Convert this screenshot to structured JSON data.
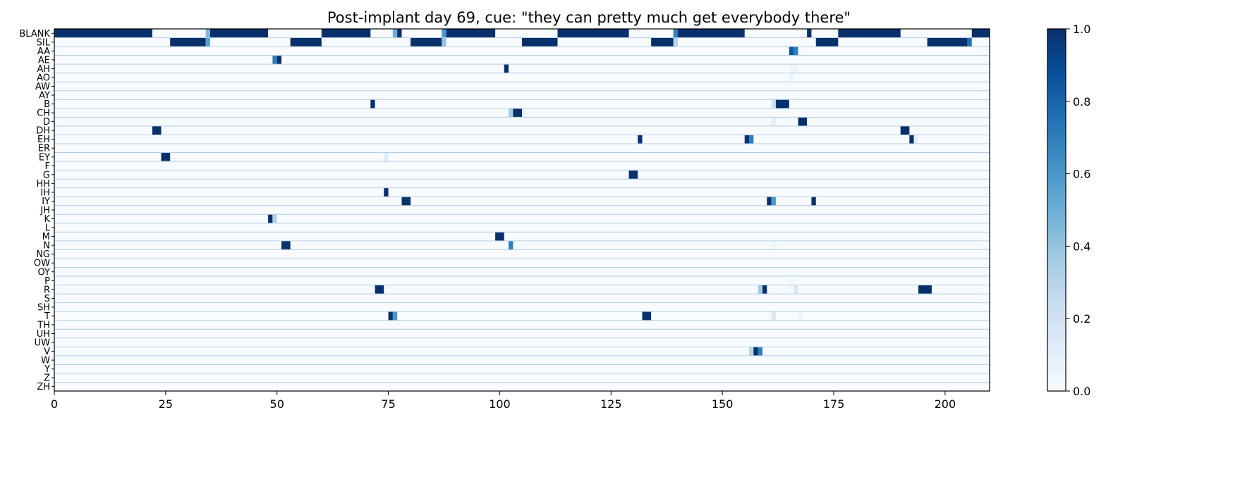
{
  "chart_data": {
    "type": "heatmap",
    "title": "Post-implant day 69, cue: \"they can pretty much get everybody there\"",
    "xlabel": "",
    "ylabel": "",
    "xlim": [
      0,
      210
    ],
    "x_ticks": [
      0,
      25,
      50,
      75,
      100,
      125,
      150,
      175,
      200
    ],
    "rows": [
      "BLANK",
      "SIL",
      "AA",
      "AE",
      "AH",
      "AO",
      "AW",
      "AY",
      "B",
      "CH",
      "D",
      "DH",
      "EH",
      "ER",
      "EY",
      "F",
      "G",
      "HH",
      "IH",
      "IY",
      "JH",
      "K",
      "L",
      "M",
      "N",
      "NG",
      "OW",
      "OY",
      "P",
      "R",
      "S",
      "SH",
      "T",
      "TH",
      "UH",
      "UW",
      "V",
      "W",
      "Y",
      "Z",
      "ZH"
    ],
    "colorbar": {
      "min": 0.0,
      "max": 1.0,
      "ticks": [
        "0.0",
        "0.2",
        "0.4",
        "0.6",
        "0.8",
        "1.0"
      ],
      "colormap": "Blues"
    },
    "row_separators": true,
    "cells": [
      {
        "row": "BLANK",
        "x0": 0,
        "x1": 22,
        "v": 1.0
      },
      {
        "row": "BLANK",
        "x0": 34,
        "x1": 35,
        "v": 0.45
      },
      {
        "row": "BLANK",
        "x0": 35,
        "x1": 48,
        "v": 1.0
      },
      {
        "row": "BLANK",
        "x0": 60,
        "x1": 71,
        "v": 1.0
      },
      {
        "row": "BLANK",
        "x0": 76,
        "x1": 77,
        "v": 0.5
      },
      {
        "row": "BLANK",
        "x0": 77,
        "x1": 78,
        "v": 1.0
      },
      {
        "row": "BLANK",
        "x0": 87,
        "x1": 88,
        "v": 0.6
      },
      {
        "row": "BLANK",
        "x0": 88,
        "x1": 99,
        "v": 1.0
      },
      {
        "row": "BLANK",
        "x0": 113,
        "x1": 129,
        "v": 1.0
      },
      {
        "row": "BLANK",
        "x0": 139,
        "x1": 140,
        "v": 0.7
      },
      {
        "row": "BLANK",
        "x0": 140,
        "x1": 155,
        "v": 1.0
      },
      {
        "row": "BLANK",
        "x0": 169,
        "x1": 170,
        "v": 1.0
      },
      {
        "row": "BLANK",
        "x0": 176,
        "x1": 190,
        "v": 1.0
      },
      {
        "row": "BLANK",
        "x0": 206,
        "x1": 210,
        "v": 1.0
      },
      {
        "row": "SIL",
        "x0": 26,
        "x1": 34,
        "v": 1.0
      },
      {
        "row": "SIL",
        "x0": 34,
        "x1": 35,
        "v": 0.55
      },
      {
        "row": "SIL",
        "x0": 53,
        "x1": 60,
        "v": 1.0
      },
      {
        "row": "SIL",
        "x0": 80,
        "x1": 87,
        "v": 1.0
      },
      {
        "row": "SIL",
        "x0": 87,
        "x1": 88,
        "v": 0.4
      },
      {
        "row": "SIL",
        "x0": 105,
        "x1": 113,
        "v": 1.0
      },
      {
        "row": "SIL",
        "x0": 134,
        "x1": 139,
        "v": 1.0
      },
      {
        "row": "SIL",
        "x0": 139,
        "x1": 140,
        "v": 0.3
      },
      {
        "row": "SIL",
        "x0": 171,
        "x1": 176,
        "v": 1.0
      },
      {
        "row": "SIL",
        "x0": 196,
        "x1": 205,
        "v": 1.0
      },
      {
        "row": "SIL",
        "x0": 205,
        "x1": 206,
        "v": 0.75
      },
      {
        "row": "AA",
        "x0": 165,
        "x1": 166,
        "v": 0.85
      },
      {
        "row": "AA",
        "x0": 166,
        "x1": 167,
        "v": 0.7
      },
      {
        "row": "AE",
        "x0": 49,
        "x1": 50,
        "v": 0.7
      },
      {
        "row": "AE",
        "x0": 50,
        "x1": 51,
        "v": 1.0
      },
      {
        "row": "AH",
        "x0": 101,
        "x1": 102,
        "v": 1.0
      },
      {
        "row": "AH",
        "x0": 165,
        "x1": 167,
        "v": 0.05
      },
      {
        "row": "AO",
        "x0": 165,
        "x1": 166,
        "v": 0.06
      },
      {
        "row": "B",
        "x0": 71,
        "x1": 72,
        "v": 1.0
      },
      {
        "row": "B",
        "x0": 161,
        "x1": 162,
        "v": 0.2
      },
      {
        "row": "B",
        "x0": 162,
        "x1": 165,
        "v": 1.0
      },
      {
        "row": "CH",
        "x0": 102,
        "x1": 103,
        "v": 0.35
      },
      {
        "row": "CH",
        "x0": 103,
        "x1": 105,
        "v": 1.0
      },
      {
        "row": "CH",
        "x0": 105,
        "x1": 106,
        "v": 0.05
      },
      {
        "row": "D",
        "x0": 161,
        "x1": 162,
        "v": 0.1
      },
      {
        "row": "D",
        "x0": 167,
        "x1": 169,
        "v": 1.0
      },
      {
        "row": "DH",
        "x0": 22,
        "x1": 24,
        "v": 1.0
      },
      {
        "row": "DH",
        "x0": 190,
        "x1": 192,
        "v": 1.0
      },
      {
        "row": "EH",
        "x0": 131,
        "x1": 132,
        "v": 1.0
      },
      {
        "row": "EH",
        "x0": 155,
        "x1": 156,
        "v": 1.0
      },
      {
        "row": "EH",
        "x0": 156,
        "x1": 157,
        "v": 0.7
      },
      {
        "row": "EH",
        "x0": 192,
        "x1": 193,
        "v": 1.0
      },
      {
        "row": "EH",
        "x0": 193,
        "x1": 194,
        "v": 0.08
      },
      {
        "row": "EY",
        "x0": 24,
        "x1": 26,
        "v": 1.0
      },
      {
        "row": "EY",
        "x0": 74,
        "x1": 75,
        "v": 0.12
      },
      {
        "row": "G",
        "x0": 129,
        "x1": 131,
        "v": 1.0
      },
      {
        "row": "IH",
        "x0": 74,
        "x1": 75,
        "v": 1.0
      },
      {
        "row": "IY",
        "x0": 78,
        "x1": 80,
        "v": 1.0
      },
      {
        "row": "IY",
        "x0": 160,
        "x1": 161,
        "v": 1.0
      },
      {
        "row": "IY",
        "x0": 161,
        "x1": 162,
        "v": 0.6
      },
      {
        "row": "IY",
        "x0": 170,
        "x1": 171,
        "v": 1.0
      },
      {
        "row": "K",
        "x0": 48,
        "x1": 49,
        "v": 1.0
      },
      {
        "row": "K",
        "x0": 49,
        "x1": 50,
        "v": 0.3
      },
      {
        "row": "M",
        "x0": 99,
        "x1": 101,
        "v": 1.0
      },
      {
        "row": "N",
        "x0": 51,
        "x1": 53,
        "v": 1.0
      },
      {
        "row": "N",
        "x0": 102,
        "x1": 103,
        "v": 0.7
      },
      {
        "row": "N",
        "x0": 161,
        "x1": 162,
        "v": 0.04
      },
      {
        "row": "P",
        "x0": 165,
        "x1": 166,
        "v": 0.03
      },
      {
        "row": "R",
        "x0": 72,
        "x1": 74,
        "v": 1.0
      },
      {
        "row": "R",
        "x0": 158,
        "x1": 159,
        "v": 0.35
      },
      {
        "row": "R",
        "x0": 159,
        "x1": 160,
        "v": 1.0
      },
      {
        "row": "R",
        "x0": 166,
        "x1": 167,
        "v": 0.15
      },
      {
        "row": "R",
        "x0": 194,
        "x1": 197,
        "v": 1.0
      },
      {
        "row": "T",
        "x0": 75,
        "x1": 76,
        "v": 1.0
      },
      {
        "row": "T",
        "x0": 76,
        "x1": 77,
        "v": 0.6
      },
      {
        "row": "T",
        "x0": 132,
        "x1": 134,
        "v": 1.0
      },
      {
        "row": "T",
        "x0": 161,
        "x1": 162,
        "v": 0.15
      },
      {
        "row": "T",
        "x0": 167,
        "x1": 168,
        "v": 0.05
      },
      {
        "row": "V",
        "x0": 156,
        "x1": 157,
        "v": 0.3
      },
      {
        "row": "V",
        "x0": 157,
        "x1": 158,
        "v": 1.0
      },
      {
        "row": "V",
        "x0": 158,
        "x1": 159,
        "v": 0.7
      }
    ]
  }
}
